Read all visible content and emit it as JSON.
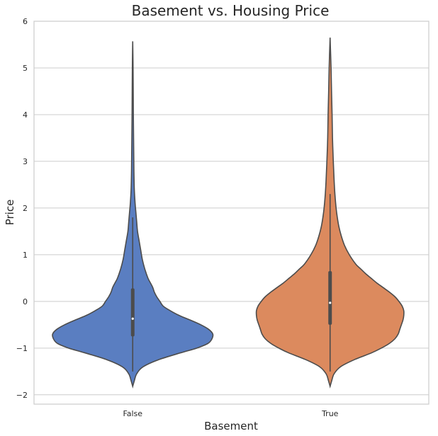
{
  "chart_data": {
    "type": "violin",
    "title": "Basement vs. Housing Price",
    "xlabel": "Basement",
    "ylabel": "Price",
    "ylim": [
      -2.2,
      6
    ],
    "yticks": [
      -2,
      -1,
      0,
      1,
      2,
      3,
      4,
      5,
      6
    ],
    "grid": "horizontal",
    "categories": [
      "False",
      "True"
    ],
    "colors": [
      "#5a7ec1",
      "#dc8a5e"
    ],
    "series": [
      {
        "category": "False",
        "min": -1.82,
        "max": 5.57,
        "whisker_low": -1.5,
        "whisker_high": 1.8,
        "q1": -0.75,
        "median": -0.37,
        "q3": 0.28,
        "density_profile": [
          [
            -1.82,
            0.0
          ],
          [
            -1.7,
            0.02
          ],
          [
            -1.55,
            0.05
          ],
          [
            -1.4,
            0.13
          ],
          [
            -1.25,
            0.32
          ],
          [
            -1.1,
            0.6
          ],
          [
            -1.0,
            0.8
          ],
          [
            -0.9,
            0.94
          ],
          [
            -0.8,
            0.99
          ],
          [
            -0.7,
            1.0
          ],
          [
            -0.6,
            0.95
          ],
          [
            -0.5,
            0.85
          ],
          [
            -0.4,
            0.72
          ],
          [
            -0.3,
            0.58
          ],
          [
            -0.2,
            0.47
          ],
          [
            -0.1,
            0.38
          ],
          [
            0.0,
            0.34
          ],
          [
            0.1,
            0.3
          ],
          [
            0.2,
            0.27
          ],
          [
            0.3,
            0.25
          ],
          [
            0.4,
            0.22
          ],
          [
            0.5,
            0.19
          ],
          [
            0.7,
            0.15
          ],
          [
            0.9,
            0.12
          ],
          [
            1.1,
            0.1
          ],
          [
            1.3,
            0.08
          ],
          [
            1.5,
            0.06
          ],
          [
            1.7,
            0.05
          ],
          [
            1.9,
            0.04
          ],
          [
            2.1,
            0.03
          ],
          [
            2.4,
            0.02
          ],
          [
            2.8,
            0.015
          ],
          [
            3.3,
            0.012
          ],
          [
            4.0,
            0.008
          ],
          [
            4.6,
            0.006
          ],
          [
            5.1,
            0.004
          ],
          [
            5.57,
            0.0
          ]
        ]
      },
      {
        "category": "True",
        "min": -1.82,
        "max": 5.65,
        "whisker_low": -1.5,
        "whisker_high": 2.3,
        "q1": -0.5,
        "median": -0.03,
        "q3": 0.65,
        "density_profile": [
          [
            -1.82,
            0.0
          ],
          [
            -1.7,
            0.02
          ],
          [
            -1.55,
            0.05
          ],
          [
            -1.4,
            0.13
          ],
          [
            -1.25,
            0.3
          ],
          [
            -1.1,
            0.52
          ],
          [
            -1.0,
            0.64
          ],
          [
            -0.9,
            0.74
          ],
          [
            -0.8,
            0.81
          ],
          [
            -0.7,
            0.85
          ],
          [
            -0.6,
            0.87
          ],
          [
            -0.5,
            0.89
          ],
          [
            -0.4,
            0.91
          ],
          [
            -0.3,
            0.92
          ],
          [
            -0.2,
            0.92
          ],
          [
            -0.1,
            0.9
          ],
          [
            0.0,
            0.86
          ],
          [
            0.1,
            0.81
          ],
          [
            0.2,
            0.74
          ],
          [
            0.3,
            0.66
          ],
          [
            0.4,
            0.58
          ],
          [
            0.5,
            0.51
          ],
          [
            0.6,
            0.44
          ],
          [
            0.7,
            0.38
          ],
          [
            0.8,
            0.32
          ],
          [
            1.0,
            0.24
          ],
          [
            1.2,
            0.18
          ],
          [
            1.4,
            0.14
          ],
          [
            1.6,
            0.11
          ],
          [
            1.8,
            0.09
          ],
          [
            2.0,
            0.075
          ],
          [
            2.3,
            0.06
          ],
          [
            2.6,
            0.05
          ],
          [
            3.0,
            0.04
          ],
          [
            3.5,
            0.03
          ],
          [
            4.0,
            0.025
          ],
          [
            4.5,
            0.018
          ],
          [
            5.0,
            0.012
          ],
          [
            5.65,
            0.0
          ]
        ]
      }
    ]
  }
}
